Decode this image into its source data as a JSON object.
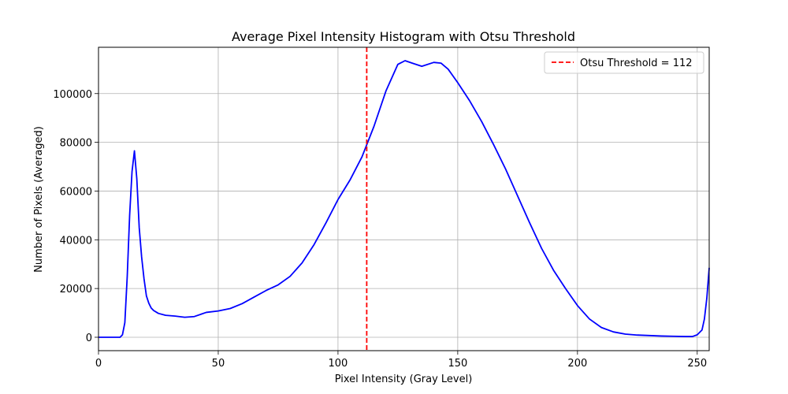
{
  "chart_data": {
    "type": "line",
    "title": "Average Pixel Intensity Histogram with Otsu Threshold",
    "xlabel": "Pixel Intensity (Gray Level)",
    "ylabel": "Number of Pixels (Averaged)",
    "xlim": [
      0,
      255
    ],
    "ylim": [
      -5500,
      119000
    ],
    "xticks": [
      0,
      50,
      100,
      150,
      200,
      250
    ],
    "yticks": [
      0,
      20000,
      40000,
      60000,
      80000,
      100000
    ],
    "grid": true,
    "legend_position": "top-right",
    "series": [
      {
        "name": "",
        "color": "#0000ff",
        "x": [
          0,
          9,
          10,
          11,
          12,
          13,
          14,
          15,
          16,
          17,
          18,
          19,
          20,
          21,
          22,
          23,
          25,
          28,
          32,
          36,
          40,
          45,
          50,
          55,
          60,
          65,
          70,
          75,
          80,
          85,
          90,
          95,
          100,
          105,
          110,
          115,
          120,
          125,
          128,
          131,
          135,
          140,
          143,
          146,
          150,
          155,
          160,
          165,
          170,
          175,
          180,
          185,
          190,
          195,
          200,
          205,
          210,
          215,
          220,
          225,
          230,
          235,
          240,
          245,
          248,
          250,
          252,
          253,
          254,
          255
        ],
        "y": [
          0,
          0,
          1000,
          6000,
          25000,
          50000,
          68000,
          76500,
          65000,
          45000,
          33000,
          24000,
          17000,
          14000,
          12000,
          11000,
          9800,
          9000,
          8700,
          8200,
          8500,
          10200,
          10800,
          11800,
          13800,
          16500,
          19200,
          21500,
          25000,
          30500,
          38000,
          47000,
          56500,
          64500,
          74000,
          86500,
          101000,
          112000,
          113500,
          112500,
          111200,
          112800,
          112500,
          110000,
          104500,
          97000,
          88500,
          79000,
          69000,
          58000,
          47000,
          36500,
          27500,
          20000,
          13000,
          7500,
          4000,
          2200,
          1300,
          900,
          700,
          500,
          400,
          300,
          300,
          1000,
          3000,
          7500,
          16000,
          28500
        ]
      }
    ],
    "threshold": {
      "value": 112,
      "label": "Otsu Threshold = 112",
      "color": "#ff0000",
      "style": "dashed"
    }
  }
}
